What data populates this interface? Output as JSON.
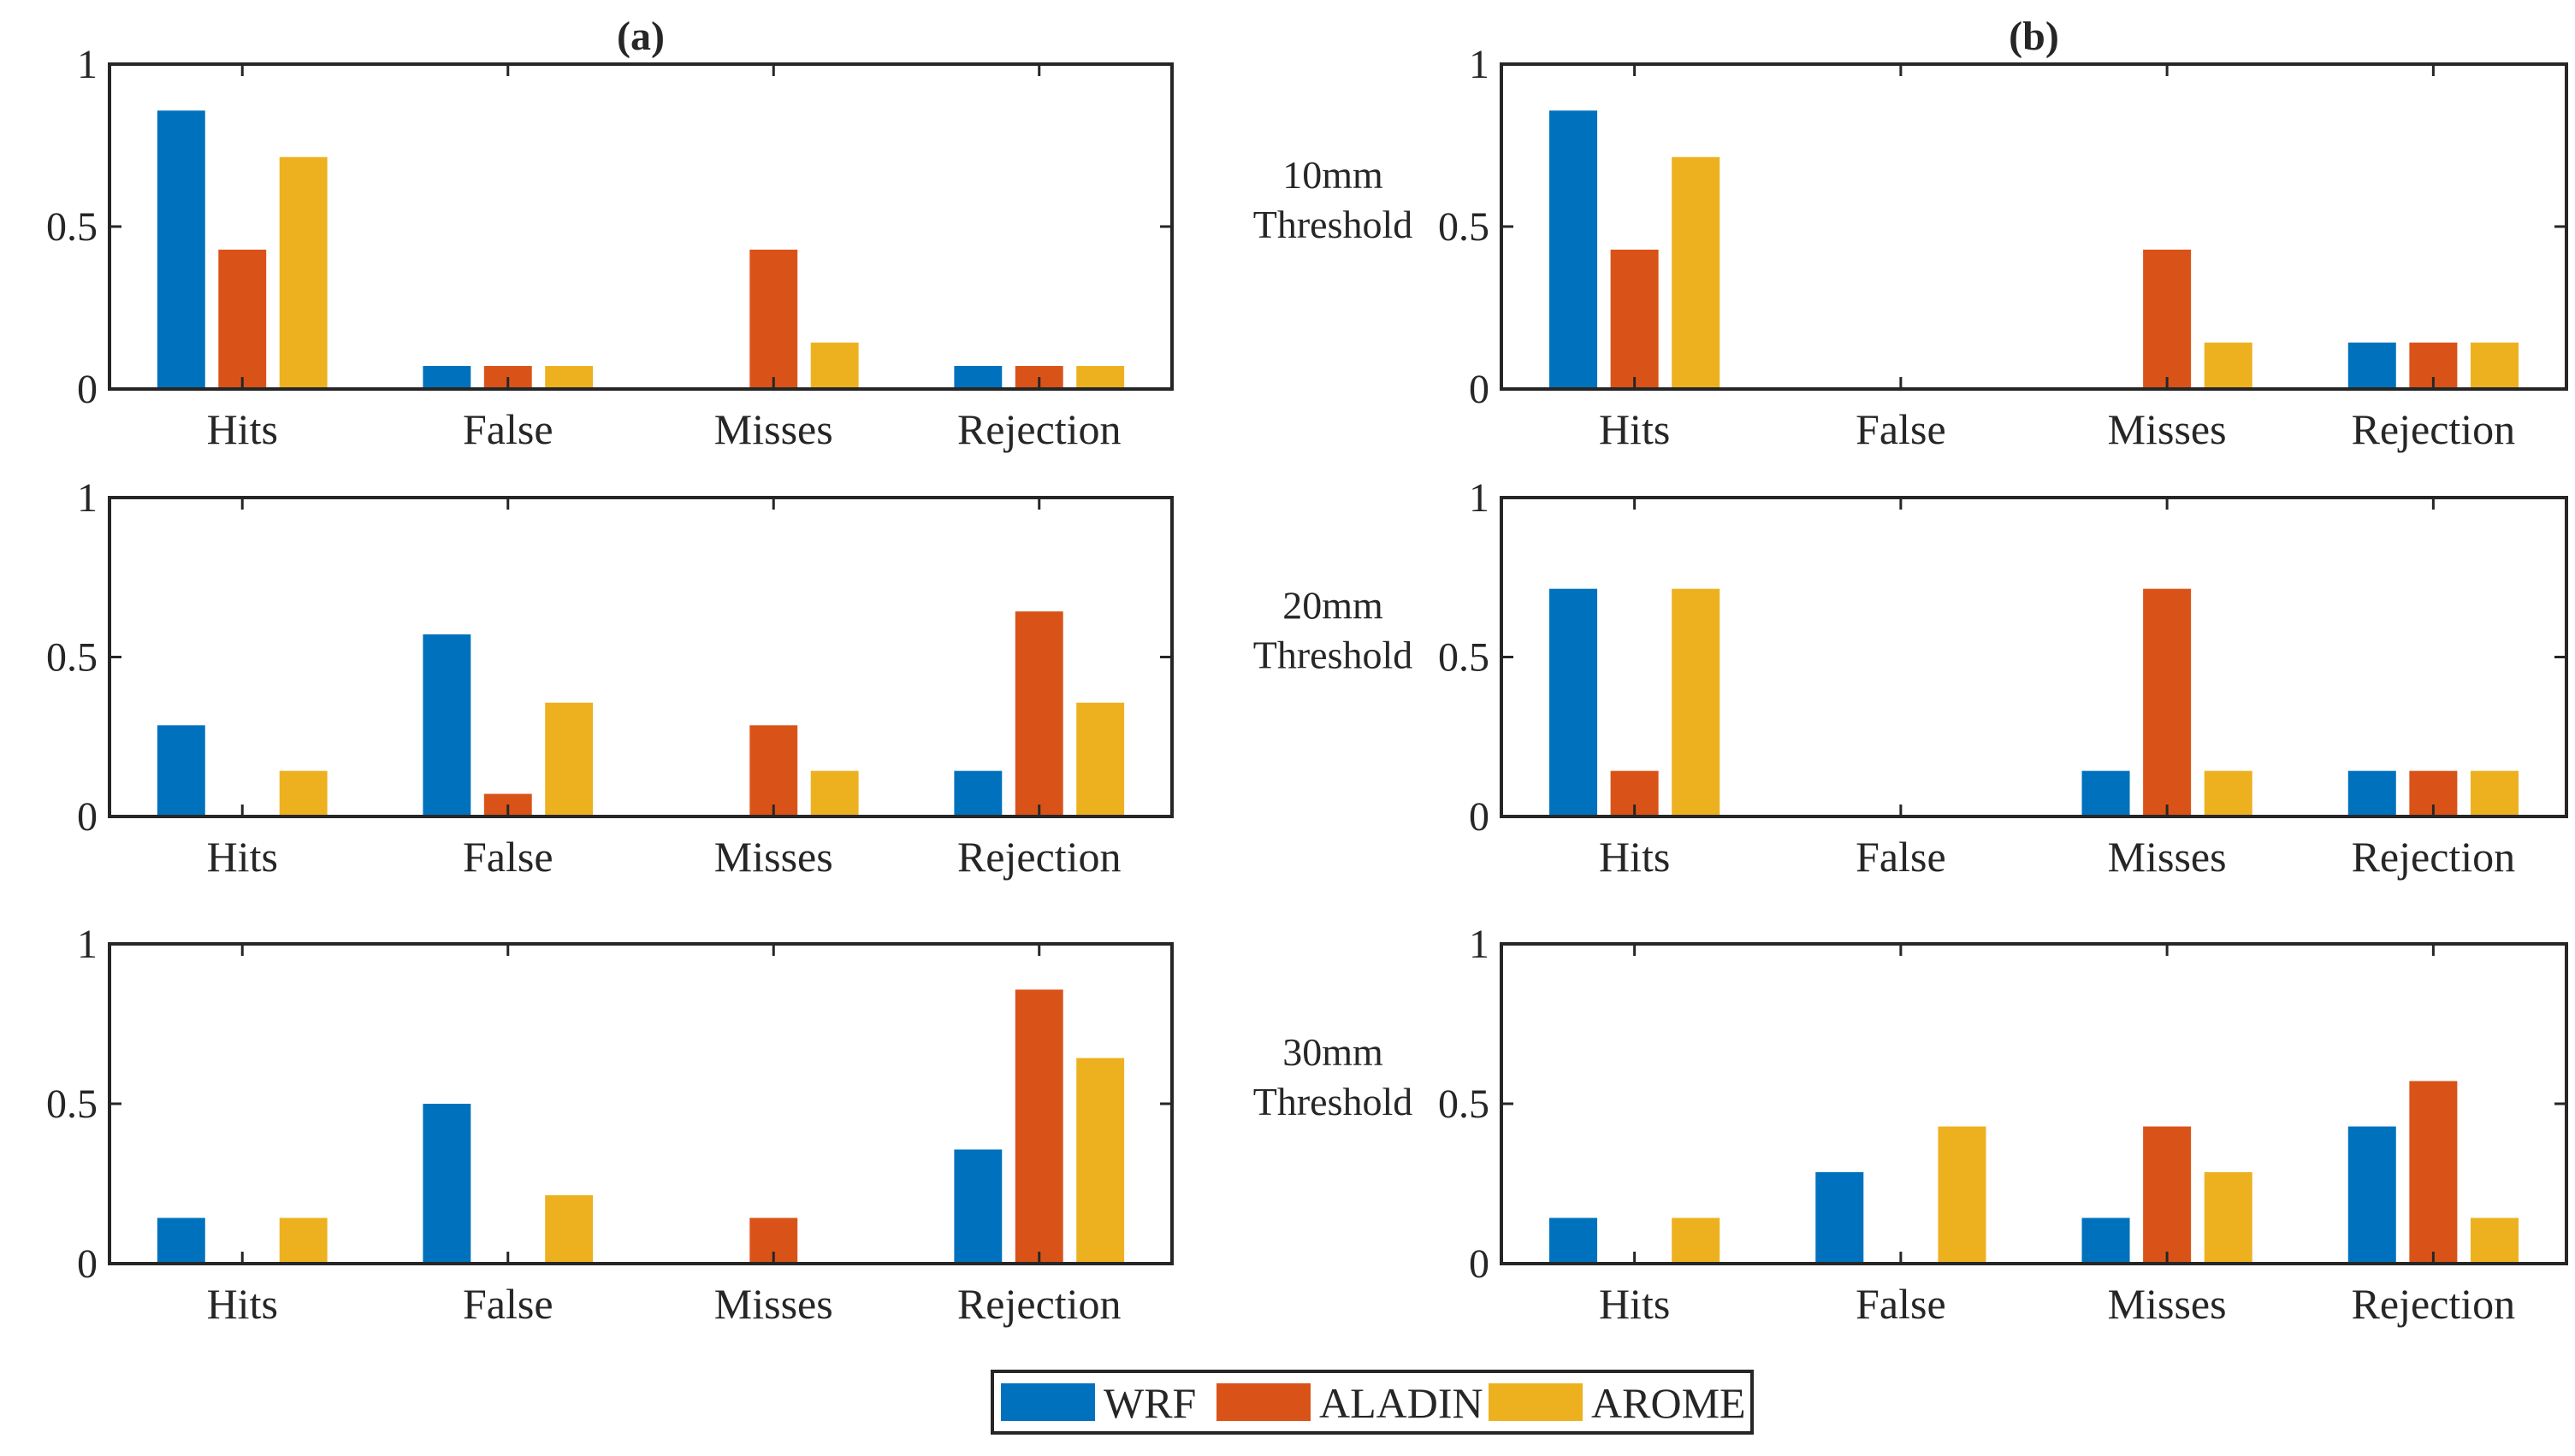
{
  "chart_data": {
    "type": "bar",
    "categories": [
      "Hits",
      "False",
      "Misses",
      "Rejection"
    ],
    "series_names": [
      "WRF",
      "ALADIN",
      "AROME"
    ],
    "colors": [
      "#0072bd",
      "#d95319",
      "#edb120"
    ],
    "ylim": [
      0,
      1
    ],
    "yticks": [
      "0",
      "0.5",
      "1"
    ],
    "column_titles": [
      "(a)",
      "(b)"
    ],
    "row_labels": [
      [
        "10mm",
        "Threshold"
      ],
      [
        "20mm",
        "Threshold"
      ],
      [
        "30mm",
        "Threshold"
      ]
    ],
    "legend": {
      "position": "bottom-center",
      "entries": [
        "WRF",
        "ALADIN",
        "AROME"
      ]
    },
    "panels": [
      {
        "column": "(a)",
        "row": "10mm Threshold",
        "series": [
          {
            "name": "WRF",
            "values": [
              0.857,
              0.071,
              0,
              0.071
            ]
          },
          {
            "name": "ALADIN",
            "values": [
              0.429,
              0.071,
              0.429,
              0.071
            ]
          },
          {
            "name": "AROME",
            "values": [
              0.714,
              0.071,
              0.143,
              0.071
            ]
          }
        ]
      },
      {
        "column": "(b)",
        "row": "10mm Threshold",
        "series": [
          {
            "name": "WRF",
            "values": [
              0.857,
              0,
              0,
              0.143
            ]
          },
          {
            "name": "ALADIN",
            "values": [
              0.429,
              0,
              0.429,
              0.143
            ]
          },
          {
            "name": "AROME",
            "values": [
              0.714,
              0,
              0.143,
              0.143
            ]
          }
        ]
      },
      {
        "column": "(a)",
        "row": "20mm Threshold",
        "series": [
          {
            "name": "WRF",
            "values": [
              0.286,
              0.571,
              0,
              0.143
            ]
          },
          {
            "name": "ALADIN",
            "values": [
              0,
              0.071,
              0.286,
              0.643
            ]
          },
          {
            "name": "AROME",
            "values": [
              0.143,
              0.357,
              0.143,
              0.357
            ]
          }
        ]
      },
      {
        "column": "(b)",
        "row": "20mm Threshold",
        "series": [
          {
            "name": "WRF",
            "values": [
              0.714,
              0,
              0.143,
              0.143
            ]
          },
          {
            "name": "ALADIN",
            "values": [
              0.143,
              0,
              0.714,
              0.143
            ]
          },
          {
            "name": "AROME",
            "values": [
              0.714,
              0,
              0.143,
              0.143
            ]
          }
        ]
      },
      {
        "column": "(a)",
        "row": "30mm Threshold",
        "series": [
          {
            "name": "WRF",
            "values": [
              0.143,
              0.5,
              0,
              0.357
            ]
          },
          {
            "name": "ALADIN",
            "values": [
              0,
              0,
              0.143,
              0.857
            ]
          },
          {
            "name": "AROME",
            "values": [
              0.143,
              0.214,
              0,
              0.643
            ]
          }
        ]
      },
      {
        "column": "(b)",
        "row": "30mm Threshold",
        "series": [
          {
            "name": "WRF",
            "values": [
              0.143,
              0.286,
              0.143,
              0.429
            ]
          },
          {
            "name": "ALADIN",
            "values": [
              0,
              0,
              0.429,
              0.571
            ]
          },
          {
            "name": "AROME",
            "values": [
              0.143,
              0.429,
              0.286,
              0.143
            ]
          }
        ]
      }
    ]
  }
}
